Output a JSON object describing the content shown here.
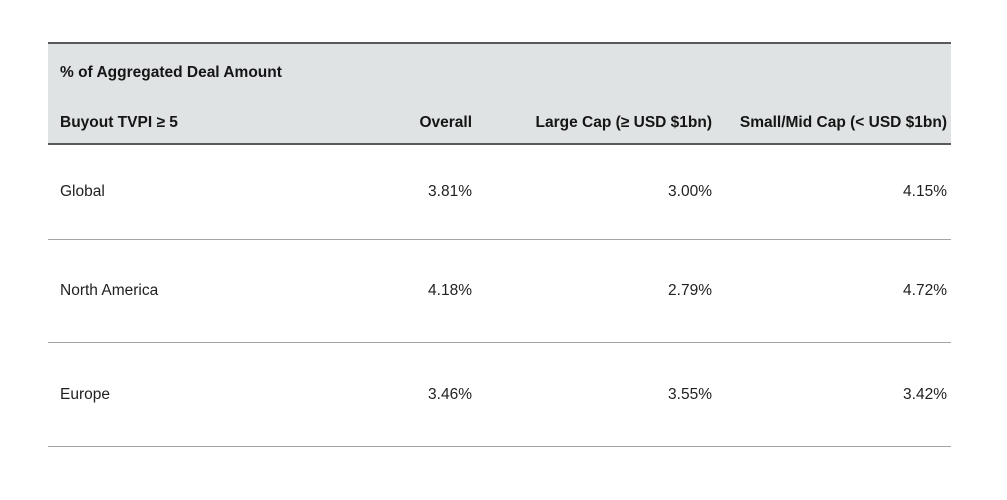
{
  "table": {
    "title": "% of Aggregated Deal Amount",
    "row_header": "Buyout TVPI ≥ 5",
    "columns": [
      "Overall",
      "Large Cap (≥ USD $1bn)",
      "Small/Mid Cap (< USD $1bn)"
    ],
    "rows": [
      {
        "label": "Global",
        "overall": "3.81%",
        "large_cap": "3.00%",
        "small_mid_cap": "4.15%"
      },
      {
        "label": "North America",
        "overall": "4.18%",
        "large_cap": "2.79%",
        "small_mid_cap": "4.72%"
      },
      {
        "label": "Europe",
        "overall": "3.46%",
        "large_cap": "3.55%",
        "small_mid_cap": "3.42%"
      }
    ],
    "colors": {
      "header_bg": "#dfe3e3",
      "header_border": "#57595b",
      "row_divider": "#a4a4a4",
      "text": "#212121"
    }
  },
  "chart_data": {
    "type": "table",
    "title": "% of Aggregated Deal Amount",
    "row_header": "Buyout TVPI ≥ 5",
    "columns": [
      "Overall",
      "Large Cap (≥ USD $1bn)",
      "Small/Mid Cap (< USD $1bn)"
    ],
    "rows": [
      {
        "label": "Global",
        "values_pct": [
          3.81,
          3.0,
          4.15
        ]
      },
      {
        "label": "North America",
        "values_pct": [
          4.18,
          2.79,
          4.72
        ]
      },
      {
        "label": "Europe",
        "values_pct": [
          3.46,
          3.55,
          3.42
        ]
      }
    ],
    "units": "percent of aggregated deal amount"
  }
}
